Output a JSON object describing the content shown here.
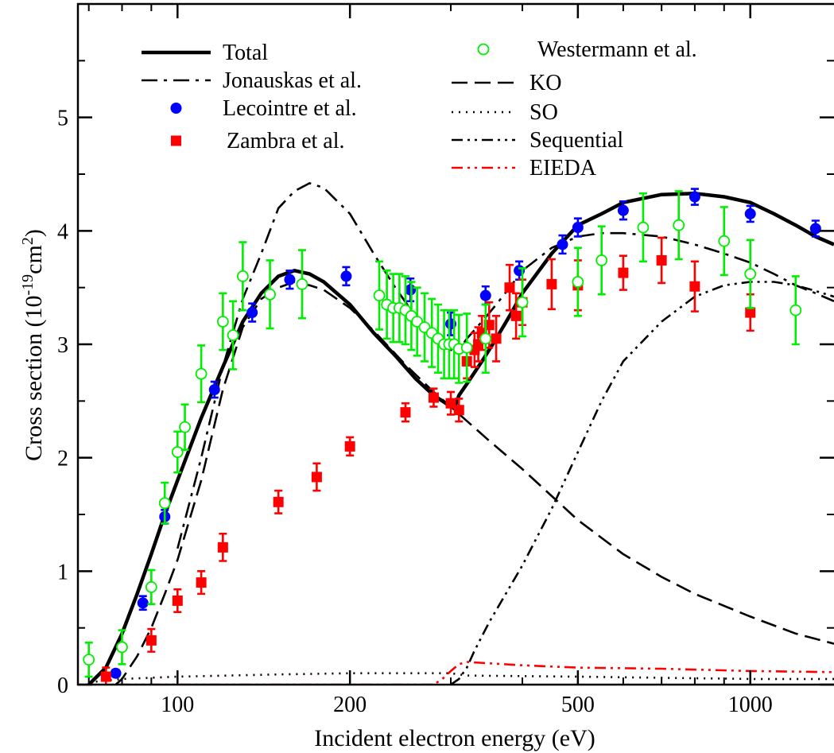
{
  "chart_data": {
    "type": "scatter",
    "xlabel": "Incident electron energy (eV)",
    "ylabel": {
      "prefix": "Cross section (10",
      "exp1": "-19",
      "mid": "cm",
      "exp2": "2",
      "suffix": ")"
    },
    "x_scale": "log",
    "xlim": [
      67,
      1400
    ],
    "ylim": [
      0,
      6
    ],
    "x_ticks": [
      100,
      200,
      500,
      1000
    ],
    "y_ticks": [
      0,
      1,
      2,
      3,
      4,
      5
    ],
    "legend_placement": "top-left",
    "series": [
      {
        "name": "Total",
        "kind": "line",
        "style": "solid-thick",
        "color": "#000000",
        "x": [
          70,
          75,
          80,
          85,
          90,
          95,
          100,
          110,
          120,
          130,
          140,
          150,
          160,
          170,
          180,
          200,
          220,
          240,
          260,
          280,
          290,
          300,
          305,
          310,
          320,
          340,
          360,
          380,
          400,
          450,
          500,
          550,
          600,
          700,
          800,
          900,
          1000,
          1100,
          1200,
          1300,
          1400
        ],
        "y": [
          0.0,
          0.15,
          0.45,
          0.8,
          1.15,
          1.5,
          1.8,
          2.35,
          2.8,
          3.2,
          3.45,
          3.6,
          3.65,
          3.62,
          3.55,
          3.35,
          3.1,
          2.9,
          2.7,
          2.55,
          2.5,
          2.45,
          2.45,
          2.55,
          2.65,
          2.85,
          3.05,
          3.25,
          3.45,
          3.8,
          4.05,
          4.15,
          4.25,
          4.32,
          4.33,
          4.3,
          4.25,
          4.15,
          4.05,
          3.95,
          3.88
        ]
      },
      {
        "name": "Jonauskas et al.",
        "kind": "line",
        "style": "dash-dot-long",
        "color": "#000000",
        "x": [
          100,
          110,
          120,
          130,
          140,
          150,
          160,
          170,
          180,
          200,
          220,
          240,
          260,
          280,
          300,
          310,
          320,
          340,
          360,
          380,
          400,
          450,
          500,
          550,
          600,
          700,
          800,
          900,
          1000,
          1100,
          1200,
          1300,
          1400
        ],
        "y": [
          1.2,
          2.0,
          2.8,
          3.4,
          3.8,
          4.2,
          4.35,
          4.42,
          4.38,
          4.15,
          3.8,
          3.5,
          3.25,
          3.05,
          2.95,
          2.95,
          3.05,
          3.2,
          3.35,
          3.5,
          3.65,
          3.85,
          3.95,
          3.98,
          3.98,
          3.95,
          3.88,
          3.8,
          3.72,
          3.62,
          3.52,
          3.45,
          3.38
        ]
      },
      {
        "name": "KO",
        "kind": "line",
        "style": "dash",
        "color": "#000000",
        "x": [
          78,
          80,
          85,
          90,
          95,
          100,
          110,
          120,
          130,
          140,
          150,
          160,
          170,
          180,
          200,
          220,
          250,
          280,
          300,
          350,
          400,
          500,
          600,
          700,
          800,
          1000,
          1200,
          1400
        ],
        "y": [
          0.0,
          0.05,
          0.25,
          0.5,
          0.8,
          1.1,
          1.8,
          2.6,
          3.15,
          3.4,
          3.5,
          3.55,
          3.52,
          3.48,
          3.32,
          3.12,
          2.82,
          2.58,
          2.45,
          2.15,
          1.9,
          1.45,
          1.15,
          0.95,
          0.8,
          0.6,
          0.45,
          0.36
        ]
      },
      {
        "name": "SO",
        "kind": "line",
        "style": "dot",
        "color": "#000000",
        "x": [
          70,
          80,
          100,
          150,
          200,
          300,
          320,
          500,
          1000,
          1400
        ],
        "y": [
          0.02,
          0.05,
          0.07,
          0.09,
          0.1,
          0.1,
          0.08,
          0.07,
          0.05,
          0.05
        ]
      },
      {
        "name": "Sequential",
        "kind": "line",
        "style": "dash-dot-dot",
        "color": "#000000",
        "x": [
          300,
          310,
          320,
          330,
          350,
          400,
          450,
          500,
          550,
          600,
          700,
          800,
          900,
          1000,
          1100,
          1200,
          1300,
          1400
        ],
        "y": [
          0.0,
          0.05,
          0.15,
          0.3,
          0.55,
          1.05,
          1.55,
          2.05,
          2.5,
          2.85,
          3.2,
          3.42,
          3.52,
          3.55,
          3.55,
          3.52,
          3.47,
          3.42
        ]
      },
      {
        "name": "EIEDA",
        "kind": "line",
        "style": "dash-dot-dot",
        "color": "#ff0000",
        "x": [
          70,
          100,
          200,
          280,
          290,
          300,
          310,
          320,
          400,
          500,
          700,
          1000,
          1400
        ],
        "y": [
          0.0,
          0.0,
          0.0,
          0.0,
          0.05,
          0.12,
          0.18,
          0.2,
          0.17,
          0.15,
          0.14,
          0.12,
          0.11
        ]
      },
      {
        "name": "Lecointre et al.",
        "kind": "points",
        "marker": "filled-circle",
        "color": "#0000ff",
        "x": [
          78,
          87,
          95,
          116,
          135,
          157,
          197,
          255,
          300,
          345,
          395,
          470,
          500,
          600,
          800,
          1000,
          1300
        ],
        "y": [
          0.1,
          0.72,
          1.48,
          2.6,
          3.28,
          3.57,
          3.6,
          3.48,
          3.18,
          3.43,
          3.65,
          3.88,
          4.03,
          4.18,
          4.3,
          4.15,
          4.02
        ],
        "err": [
          0.03,
          0.06,
          0.06,
          0.07,
          0.08,
          0.08,
          0.08,
          0.1,
          0.1,
          0.08,
          0.08,
          0.08,
          0.08,
          0.08,
          0.07,
          0.07,
          0.07
        ]
      },
      {
        "name": "Zambra et al.",
        "kind": "points",
        "marker": "filled-square",
        "color": "#ff0000",
        "x": [
          75,
          90,
          100,
          110,
          120,
          150,
          175,
          200,
          250,
          280,
          300,
          310,
          320,
          330,
          335,
          340,
          350,
          360,
          380,
          390,
          400,
          450,
          500,
          600,
          700,
          800,
          1000
        ],
        "y": [
          0.07,
          0.39,
          0.74,
          0.9,
          1.21,
          1.61,
          1.83,
          2.1,
          2.4,
          2.53,
          2.48,
          2.42,
          2.85,
          2.95,
          3.0,
          3.1,
          3.17,
          3.05,
          3.5,
          3.25,
          3.37,
          3.53,
          3.52,
          3.63,
          3.74,
          3.51,
          3.28
        ],
        "err": [
          0.08,
          0.1,
          0.1,
          0.1,
          0.12,
          0.1,
          0.12,
          0.08,
          0.08,
          0.08,
          0.1,
          0.1,
          0.15,
          0.15,
          0.15,
          0.15,
          0.2,
          0.2,
          0.2,
          0.2,
          0.2,
          0.22,
          0.22,
          0.15,
          0.2,
          0.22,
          0.16
        ]
      },
      {
        "name": "Westermann et al.",
        "kind": "points",
        "marker": "open-circle",
        "color": "#00ee00",
        "x": [
          70,
          80,
          90,
          95,
          100,
          103,
          110,
          120,
          125,
          130,
          145,
          165,
          225,
          232,
          238,
          244,
          250,
          256,
          262,
          270,
          278,
          285,
          292,
          298,
          304,
          310,
          320,
          345,
          400,
          500,
          550,
          650,
          750,
          900,
          1000,
          1200
        ],
        "y": [
          0.22,
          0.33,
          0.86,
          1.6,
          2.05,
          2.27,
          2.74,
          3.2,
          3.08,
          3.6,
          3.44,
          3.53,
          3.43,
          3.35,
          3.32,
          3.32,
          3.3,
          3.25,
          3.2,
          3.15,
          3.1,
          3.05,
          3.0,
          3.0,
          3.0,
          2.96,
          2.97,
          3.05,
          3.37,
          3.55,
          3.74,
          4.03,
          4.05,
          3.91,
          3.62,
          3.3
        ],
        "err": [
          0.15,
          0.15,
          0.15,
          0.18,
          0.18,
          0.2,
          0.25,
          0.25,
          0.3,
          0.3,
          0.3,
          0.3,
          0.3,
          0.3,
          0.3,
          0.3,
          0.3,
          0.3,
          0.3,
          0.3,
          0.3,
          0.3,
          0.3,
          0.3,
          0.3,
          0.3,
          0.3,
          0.3,
          0.3,
          0.3,
          0.3,
          0.3,
          0.3,
          0.3,
          0.3,
          0.3
        ]
      }
    ]
  }
}
